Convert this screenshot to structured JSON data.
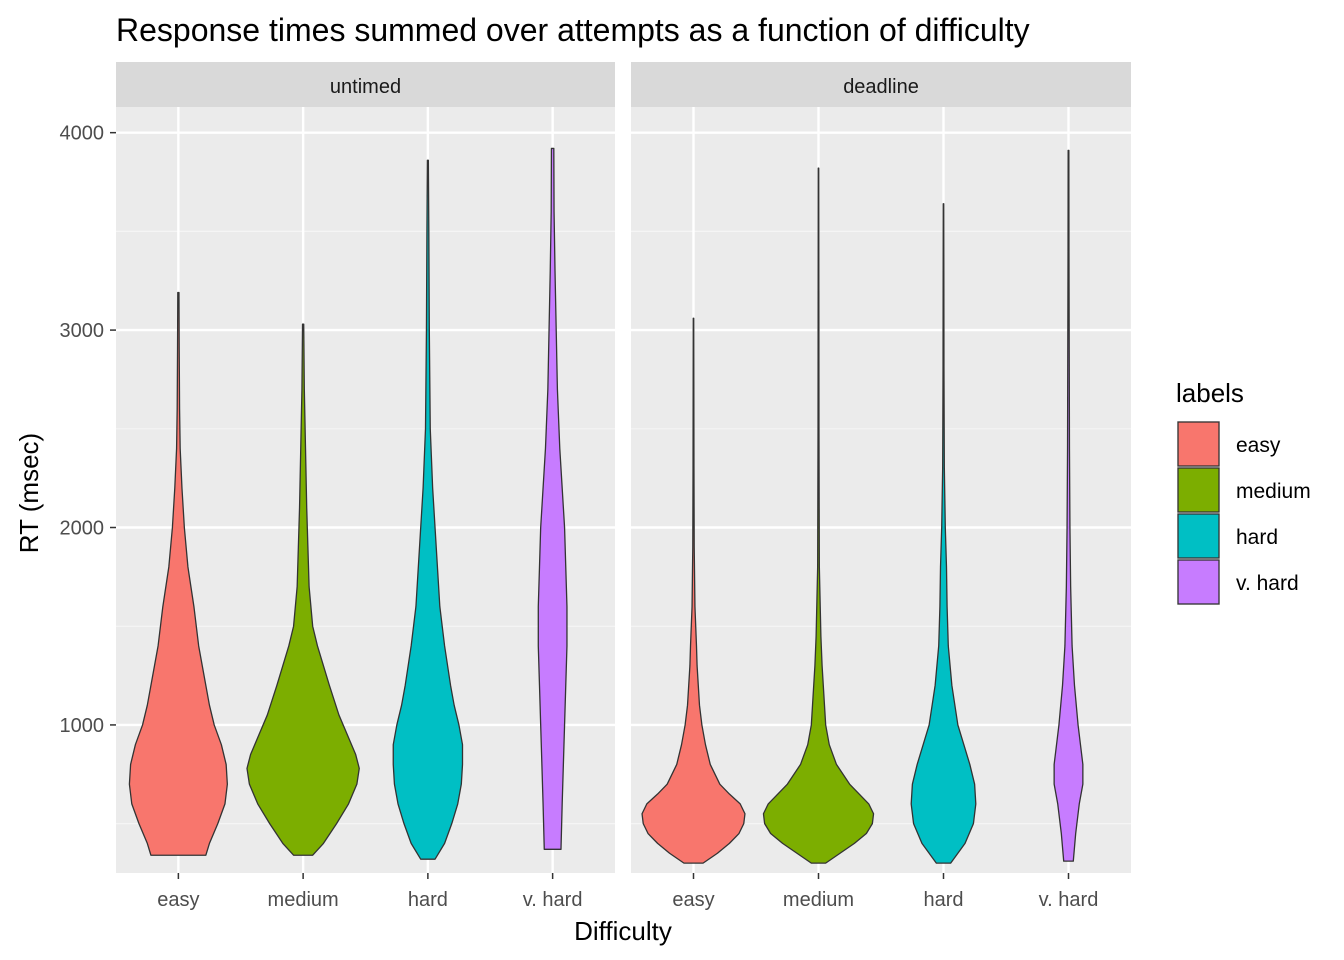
{
  "chart_data": {
    "type": "violin",
    "title": "Response times summed over attempts as a function of difficulty",
    "xlabel": "Difficulty",
    "ylabel": "RT (msec)",
    "ylim": [
      250,
      4130
    ],
    "yticks": [
      1000,
      2000,
      3000,
      4000
    ],
    "grid": true,
    "legend_title": "labels",
    "legend_position": "right",
    "categories": [
      "easy",
      "medium",
      "hard",
      "v. hard"
    ],
    "colors": {
      "easy": "#F8766D",
      "medium": "#7CAE00",
      "hard": "#00BFC4",
      "v. hard": "#C77CFF"
    },
    "panels": [
      {
        "name": "untimed",
        "violins": [
          {
            "category": "easy",
            "profile": [
              [
                340,
                0.23
              ],
              [
                400,
                0.26
              ],
              [
                500,
                0.33
              ],
              [
                600,
                0.39
              ],
              [
                700,
                0.41
              ],
              [
                800,
                0.4
              ],
              [
                900,
                0.36
              ],
              [
                1000,
                0.3
              ],
              [
                1100,
                0.26
              ],
              [
                1200,
                0.23
              ],
              [
                1300,
                0.2
              ],
              [
                1400,
                0.17
              ],
              [
                1600,
                0.13
              ],
              [
                1800,
                0.08
              ],
              [
                2000,
                0.05
              ],
              [
                2200,
                0.03
              ],
              [
                2400,
                0.015
              ],
              [
                2600,
                0.01
              ],
              [
                2900,
                0.007
              ],
              [
                3190,
                0.005
              ]
            ]
          },
          {
            "category": "medium",
            "profile": [
              [
                340,
                0.08
              ],
              [
                400,
                0.17
              ],
              [
                500,
                0.28
              ],
              [
                600,
                0.38
              ],
              [
                700,
                0.45
              ],
              [
                780,
                0.47
              ],
              [
                850,
                0.44
              ],
              [
                950,
                0.37
              ],
              [
                1050,
                0.3
              ],
              [
                1200,
                0.22
              ],
              [
                1300,
                0.17
              ],
              [
                1400,
                0.12
              ],
              [
                1500,
                0.08
              ],
              [
                1700,
                0.05
              ],
              [
                1900,
                0.04
              ],
              [
                2100,
                0.03
              ],
              [
                2400,
                0.02
              ],
              [
                2700,
                0.01
              ],
              [
                3030,
                0.005
              ]
            ]
          },
          {
            "category": "hard",
            "profile": [
              [
                320,
                0.06
              ],
              [
                400,
                0.14
              ],
              [
                500,
                0.2
              ],
              [
                600,
                0.25
              ],
              [
                700,
                0.28
              ],
              [
                800,
                0.29
              ],
              [
                900,
                0.29
              ],
              [
                1000,
                0.26
              ],
              [
                1100,
                0.22
              ],
              [
                1200,
                0.19
              ],
              [
                1400,
                0.14
              ],
              [
                1600,
                0.1
              ],
              [
                1800,
                0.08
              ],
              [
                2000,
                0.06
              ],
              [
                2200,
                0.04
              ],
              [
                2500,
                0.02
              ],
              [
                3000,
                0.012
              ],
              [
                3500,
                0.008
              ],
              [
                3860,
                0.004
              ]
            ]
          },
          {
            "category": "v. hard",
            "profile": [
              [
                370,
                0.07
              ],
              [
                600,
                0.08
              ],
              [
                800,
                0.09
              ],
              [
                1000,
                0.1
              ],
              [
                1200,
                0.11
              ],
              [
                1400,
                0.12
              ],
              [
                1600,
                0.12
              ],
              [
                1800,
                0.11
              ],
              [
                2000,
                0.1
              ],
              [
                2200,
                0.08
              ],
              [
                2400,
                0.06
              ],
              [
                2700,
                0.04
              ],
              [
                3000,
                0.03
              ],
              [
                3300,
                0.02
              ],
              [
                3600,
                0.012
              ],
              [
                3920,
                0.01
              ]
            ]
          }
        ]
      },
      {
        "name": "deadline",
        "violins": [
          {
            "category": "easy",
            "profile": [
              [
                300,
                0.08
              ],
              [
                350,
                0.2
              ],
              [
                400,
                0.3
              ],
              [
                450,
                0.38
              ],
              [
                500,
                0.42
              ],
              [
                550,
                0.43
              ],
              [
                600,
                0.39
              ],
              [
                650,
                0.3
              ],
              [
                700,
                0.22
              ],
              [
                800,
                0.14
              ],
              [
                900,
                0.1
              ],
              [
                1000,
                0.07
              ],
              [
                1100,
                0.05
              ],
              [
                1200,
                0.04
              ],
              [
                1300,
                0.03
              ],
              [
                1400,
                0.025
              ],
              [
                1600,
                0.012
              ],
              [
                1900,
                0.006
              ],
              [
                2300,
                0.004
              ],
              [
                2700,
                0.003
              ],
              [
                3060,
                0.002
              ]
            ]
          },
          {
            "category": "medium",
            "profile": [
              [
                300,
                0.06
              ],
              [
                350,
                0.18
              ],
              [
                400,
                0.3
              ],
              [
                450,
                0.4
              ],
              [
                500,
                0.45
              ],
              [
                550,
                0.46
              ],
              [
                600,
                0.42
              ],
              [
                650,
                0.34
              ],
              [
                700,
                0.26
              ],
              [
                800,
                0.15
              ],
              [
                900,
                0.09
              ],
              [
                1000,
                0.06
              ],
              [
                1100,
                0.05
              ],
              [
                1200,
                0.04
              ],
              [
                1300,
                0.03
              ],
              [
                1450,
                0.02
              ],
              [
                1800,
                0.007
              ],
              [
                2500,
                0.004
              ],
              [
                3200,
                0.003
              ],
              [
                3820,
                0.002
              ]
            ]
          },
          {
            "category": "hard",
            "profile": [
              [
                300,
                0.06
              ],
              [
                350,
                0.12
              ],
              [
                400,
                0.18
              ],
              [
                500,
                0.25
              ],
              [
                600,
                0.27
              ],
              [
                700,
                0.26
              ],
              [
                800,
                0.22
              ],
              [
                900,
                0.17
              ],
              [
                1000,
                0.12
              ],
              [
                1200,
                0.07
              ],
              [
                1400,
                0.04
              ],
              [
                1600,
                0.03
              ],
              [
                1800,
                0.025
              ],
              [
                2000,
                0.015
              ],
              [
                2300,
                0.007
              ],
              [
                2800,
                0.004
              ],
              [
                3300,
                0.003
              ],
              [
                3640,
                0.002
              ]
            ]
          },
          {
            "category": "v. hard",
            "profile": [
              [
                310,
                0.04
              ],
              [
                450,
                0.06
              ],
              [
                600,
                0.09
              ],
              [
                700,
                0.12
              ],
              [
                800,
                0.12
              ],
              [
                900,
                0.1
              ],
              [
                1000,
                0.08
              ],
              [
                1200,
                0.05
              ],
              [
                1400,
                0.03
              ],
              [
                1700,
                0.018
              ],
              [
                2000,
                0.012
              ],
              [
                2400,
                0.008
              ],
              [
                2900,
                0.006
              ],
              [
                3400,
                0.004
              ],
              [
                3910,
                0.003
              ]
            ]
          }
        ]
      }
    ]
  }
}
